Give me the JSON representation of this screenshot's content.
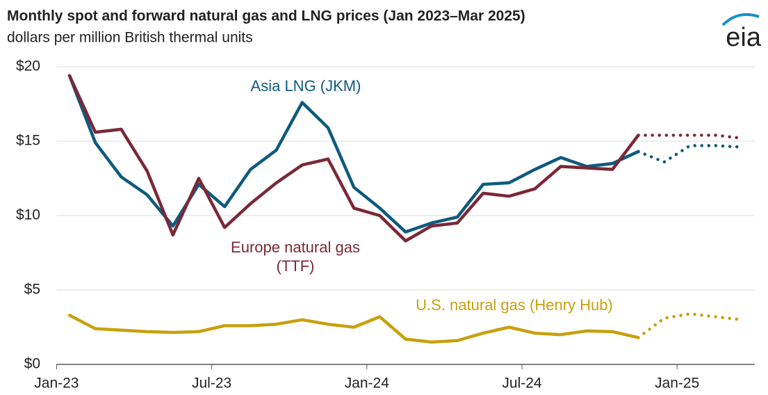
{
  "logo": "eia",
  "chart_data": {
    "type": "line",
    "title": "Monthly spot and forward natural gas and LNG prices (Jan 2023–Mar 2025)",
    "subtitle": "dollars per million British thermal units",
    "categories": [
      "Jan-23",
      null,
      null,
      null,
      null,
      null,
      "Jul-23",
      null,
      null,
      null,
      null,
      null,
      "Jan-24",
      null,
      null,
      null,
      null,
      null,
      "Jul-24",
      null,
      null,
      null,
      null,
      null,
      "Jan-25",
      null,
      null
    ],
    "ylim": [
      0,
      20
    ],
    "yticks": [
      {
        "value": 0,
        "label": "$0"
      },
      {
        "value": 5,
        "label": "$5"
      },
      {
        "value": 10,
        "label": "$10"
      },
      {
        "value": 15,
        "label": "$15"
      },
      {
        "value": 20,
        "label": "$20"
      }
    ],
    "grid": true,
    "series": [
      {
        "name": "Asia LNG (JKM)",
        "color": "#0f5a7e",
        "values": [
          19.4,
          14.9,
          12.6,
          11.4,
          9.3,
          12.1,
          10.6,
          13.1,
          14.4,
          17.6,
          15.9,
          11.9,
          10.5,
          8.9,
          9.5,
          9.9,
          12.1,
          12.2,
          13.1,
          13.9,
          13.3,
          13.5,
          14.3,
          null,
          null,
          null,
          null
        ],
        "forward": [
          null,
          null,
          null,
          null,
          null,
          null,
          null,
          null,
          null,
          null,
          null,
          null,
          null,
          null,
          null,
          null,
          null,
          null,
          null,
          null,
          null,
          null,
          14.3,
          13.6,
          14.7,
          14.7,
          14.6
        ]
      },
      {
        "name": "Europe natural gas (TTF)",
        "color": "#7a2838",
        "values": [
          19.4,
          15.6,
          15.8,
          13.0,
          8.7,
          12.5,
          9.2,
          10.8,
          12.2,
          13.4,
          13.8,
          10.5,
          10.0,
          8.3,
          9.3,
          9.5,
          11.5,
          11.3,
          11.8,
          13.3,
          13.2,
          13.1,
          15.4,
          null,
          null,
          null,
          null
        ],
        "forward": [
          null,
          null,
          null,
          null,
          null,
          null,
          null,
          null,
          null,
          null,
          null,
          null,
          null,
          null,
          null,
          null,
          null,
          null,
          null,
          null,
          null,
          null,
          15.4,
          15.4,
          15.4,
          15.4,
          15.2
        ]
      },
      {
        "name": "U.S. natural gas (Henry Hub)",
        "color": "#c8a00e",
        "values": [
          3.3,
          2.4,
          2.3,
          2.2,
          2.15,
          2.2,
          2.6,
          2.6,
          2.7,
          3.0,
          2.7,
          2.5,
          3.2,
          1.7,
          1.5,
          1.6,
          2.1,
          2.5,
          2.1,
          2.0,
          2.25,
          2.2,
          1.8,
          null,
          null,
          null,
          null
        ],
        "forward": [
          null,
          null,
          null,
          null,
          null,
          null,
          null,
          null,
          null,
          null,
          null,
          null,
          null,
          null,
          null,
          null,
          null,
          null,
          null,
          null,
          null,
          null,
          1.8,
          3.1,
          3.4,
          3.2,
          3.0
        ]
      }
    ]
  }
}
